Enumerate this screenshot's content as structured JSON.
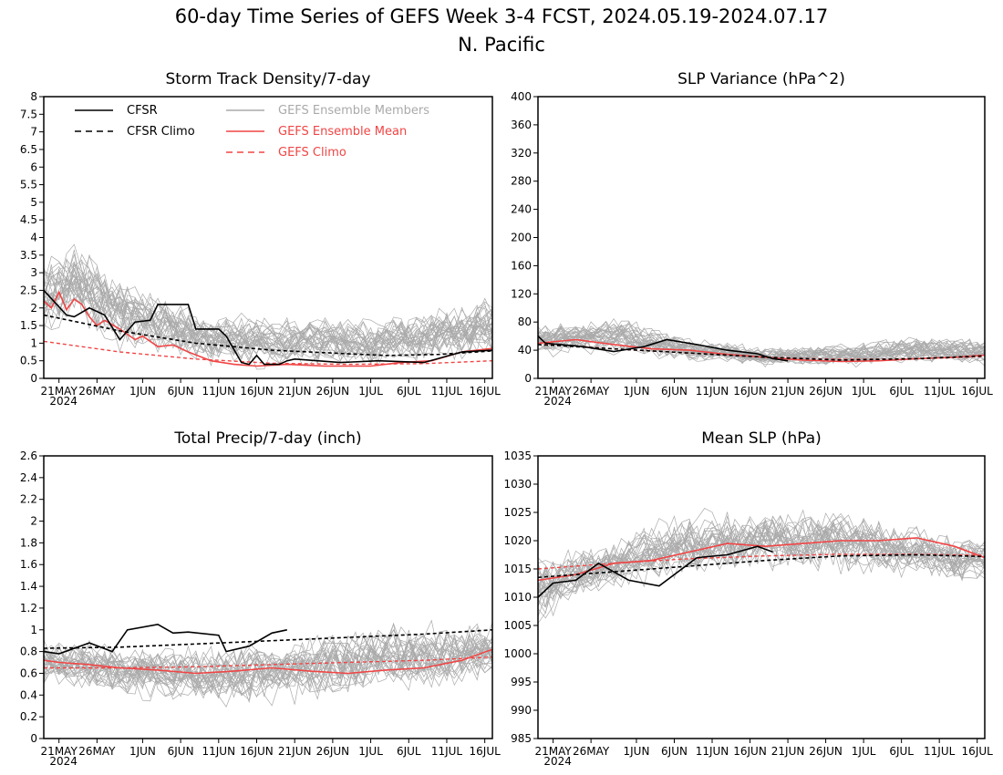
{
  "figure": {
    "title_line1": "60-day Time Series of GEFS Week 3-4 FCST, 2024.05.19-2024.07.17",
    "title_line2": "N. Pacific"
  },
  "colors": {
    "cfsr": "#000000",
    "ensemble_members": "#aaaaaa",
    "ensemble_mean": "#f04545",
    "gefs_climo": "#f04545"
  },
  "legend": [
    {
      "label": "CFSR",
      "style": "solid",
      "color": "#000000"
    },
    {
      "label": "CFSR Climo",
      "style": "dashed",
      "color": "#000000"
    },
    {
      "label": "GEFS Ensemble Members",
      "style": "solid",
      "color": "#aaaaaa"
    },
    {
      "label": "GEFS Ensemble Mean",
      "style": "solid",
      "color": "#f04545"
    },
    {
      "label": "GEFS Climo",
      "style": "dashed",
      "color": "#f04545"
    }
  ],
  "chart_data": [
    {
      "type": "line",
      "title": "Storm Track Density/7-day",
      "x_tick_labels": [
        "21MAY",
        "26MAY",
        "1JUN",
        "6JUN",
        "11JUN",
        "16JUN",
        "21JUN",
        "26JUN",
        "1JUL",
        "6JUL",
        "11JUL",
        "16JUL"
      ],
      "x_year_label": "2024",
      "x_range": [
        "2024-05-19",
        "2024-07-17"
      ],
      "yticks": [
        0,
        0.5,
        1,
        1.5,
        2,
        2.5,
        3,
        3.5,
        4,
        4.5,
        5,
        5.5,
        6,
        6.5,
        7,
        7.5,
        8
      ],
      "ylim": [
        0,
        8
      ],
      "legend_position": "top-left",
      "members_envelope": {
        "low": [
          [
            0,
            1.0
          ],
          [
            8,
            0.6
          ],
          [
            20,
            0.2
          ],
          [
            30,
            0.1
          ],
          [
            40,
            0.1
          ],
          [
            59,
            0.1
          ]
        ],
        "high": [
          [
            0,
            3.6
          ],
          [
            4,
            4.6
          ],
          [
            10,
            3.4
          ],
          [
            20,
            2.2
          ],
          [
            30,
            2.0
          ],
          [
            45,
            2.0
          ],
          [
            59,
            2.6
          ]
        ]
      },
      "series": [
        {
          "name": "CFSR",
          "dates": [
            "2024-05-19",
            "2024-05-22",
            "2024-05-23",
            "2024-05-25",
            "2024-05-27",
            "2024-05-29",
            "2024-05-31",
            "2024-06-02",
            "2024-06-03",
            "2024-06-07",
            "2024-06-08",
            "2024-06-11",
            "2024-06-12",
            "2024-06-14",
            "2024-06-15",
            "2024-06-16",
            "2024-06-17",
            "2024-06-19",
            "2024-06-20",
            "2024-06-21",
            "2024-06-27",
            "2024-07-02",
            "2024-07-08",
            "2024-07-13",
            "2024-07-17"
          ],
          "values": [
            2.5,
            1.8,
            1.75,
            2.0,
            1.8,
            1.1,
            1.6,
            1.65,
            2.1,
            2.1,
            1.4,
            1.4,
            1.2,
            0.45,
            0.4,
            0.65,
            0.4,
            0.4,
            0.5,
            0.55,
            0.45,
            0.5,
            0.45,
            0.75,
            0.8
          ]
        },
        {
          "name": "CFSR Climo",
          "dates": [
            "2024-05-19",
            "2024-05-29",
            "2024-06-08",
            "2024-06-18",
            "2024-06-28",
            "2024-07-03",
            "2024-07-10",
            "2024-07-17"
          ],
          "values": [
            1.8,
            1.35,
            1.0,
            0.8,
            0.7,
            0.65,
            0.68,
            0.78
          ]
        },
        {
          "name": "GEFS Ensemble Mean",
          "dates": [
            "2024-05-19",
            "2024-05-20",
            "2024-05-21",
            "2024-05-22",
            "2024-05-23",
            "2024-05-24",
            "2024-05-25",
            "2024-05-26",
            "2024-05-27",
            "2024-05-29",
            "2024-05-31",
            "2024-06-01",
            "2024-06-03",
            "2024-06-05",
            "2024-06-07",
            "2024-06-10",
            "2024-06-13",
            "2024-06-16",
            "2024-06-20",
            "2024-06-25",
            "2024-07-01",
            "2024-07-05",
            "2024-07-09",
            "2024-07-13",
            "2024-07-17"
          ],
          "values": [
            2.2,
            2.0,
            2.45,
            1.95,
            2.25,
            2.1,
            1.75,
            1.5,
            1.65,
            1.4,
            1.1,
            1.2,
            0.9,
            0.95,
            0.75,
            0.5,
            0.4,
            0.35,
            0.4,
            0.35,
            0.35,
            0.45,
            0.5,
            0.75,
            0.85
          ]
        },
        {
          "name": "GEFS Climo",
          "dates": [
            "2024-05-19",
            "2024-05-29",
            "2024-06-08",
            "2024-06-18",
            "2024-06-28",
            "2024-07-08",
            "2024-07-17"
          ],
          "values": [
            1.05,
            0.75,
            0.55,
            0.43,
            0.4,
            0.42,
            0.5
          ]
        }
      ]
    },
    {
      "type": "line",
      "title": "SLP Variance (hPa^2)",
      "x_tick_labels": [
        "21MAY",
        "26MAY",
        "1JUN",
        "6JUN",
        "11JUN",
        "16JUN",
        "21JUN",
        "26JUN",
        "1JUL",
        "6JUL",
        "11JUL",
        "16JUL"
      ],
      "x_year_label": "2024",
      "x_range": [
        "2024-05-19",
        "2024-07-17"
      ],
      "yticks": [
        0,
        40,
        80,
        120,
        160,
        200,
        240,
        280,
        320,
        360,
        400
      ],
      "ylim": [
        0,
        400
      ],
      "members_envelope": {
        "low": [
          [
            0,
            28
          ],
          [
            15,
            20
          ],
          [
            30,
            12
          ],
          [
            45,
            12
          ],
          [
            59,
            14
          ]
        ],
        "high": [
          [
            0,
            88
          ],
          [
            10,
            100
          ],
          [
            20,
            65
          ],
          [
            30,
            50
          ],
          [
            40,
            55
          ],
          [
            50,
            70
          ],
          [
            59,
            65
          ]
        ]
      },
      "series": [
        {
          "name": "CFSR",
          "dates": [
            "2024-05-19",
            "2024-05-20",
            "2024-05-25",
            "2024-05-29",
            "2024-06-02",
            "2024-06-05",
            "2024-06-09",
            "2024-06-13",
            "2024-06-17",
            "2024-06-19",
            "2024-06-21"
          ],
          "values": [
            60,
            50,
            45,
            38,
            45,
            55,
            48,
            40,
            35,
            28,
            25
          ]
        },
        {
          "name": "CFSR Climo",
          "dates": [
            "2024-05-19",
            "2024-05-29",
            "2024-06-08",
            "2024-06-18",
            "2024-06-28",
            "2024-07-08",
            "2024-07-17"
          ],
          "values": [
            48,
            42,
            36,
            30,
            26,
            28,
            32
          ]
        },
        {
          "name": "GEFS Ensemble Mean",
          "dates": [
            "2024-05-19",
            "2024-05-24",
            "2024-05-29",
            "2024-06-03",
            "2024-06-08",
            "2024-06-13",
            "2024-06-18",
            "2024-06-23",
            "2024-06-28",
            "2024-07-03",
            "2024-07-08",
            "2024-07-13",
            "2024-07-17"
          ],
          "values": [
            50,
            55,
            48,
            42,
            40,
            34,
            30,
            26,
            24,
            25,
            28,
            30,
            33
          ]
        },
        {
          "name": "GEFS Climo",
          "dates": [
            "2024-05-19",
            "2024-05-29",
            "2024-06-08",
            "2024-06-18",
            "2024-06-28",
            "2024-07-08",
            "2024-07-17"
          ],
          "values": [
            50,
            42,
            36,
            30,
            27,
            28,
            31
          ]
        }
      ]
    },
    {
      "type": "line",
      "title": "Total Precip/7-day (inch)",
      "x_tick_labels": [
        "21MAY",
        "26MAY",
        "1JUN",
        "6JUN",
        "11JUN",
        "16JUN",
        "21JUN",
        "26JUN",
        "1JUL",
        "6JUL",
        "11JUL",
        "16JUL"
      ],
      "x_year_label": "2024",
      "x_range": [
        "2024-05-19",
        "2024-07-17"
      ],
      "yticks": [
        0,
        0.2,
        0.4,
        0.6,
        0.8,
        1,
        1.2,
        1.4,
        1.6,
        1.8,
        2,
        2.2,
        2.4,
        2.6
      ],
      "ylim": [
        0,
        2.6
      ],
      "members_envelope": {
        "low": [
          [
            0,
            0.4
          ],
          [
            15,
            0.25
          ],
          [
            25,
            0.2
          ],
          [
            40,
            0.25
          ],
          [
            59,
            0.4
          ]
        ],
        "high": [
          [
            0,
            1.0
          ],
          [
            15,
            0.95
          ],
          [
            30,
            1.0
          ],
          [
            45,
            1.2
          ],
          [
            59,
            1.2
          ]
        ]
      },
      "series": [
        {
          "name": "CFSR",
          "dates": [
            "2024-05-19",
            "2024-05-21",
            "2024-05-25",
            "2024-05-28",
            "2024-05-30",
            "2024-06-03",
            "2024-06-05",
            "2024-06-07",
            "2024-06-11",
            "2024-06-12",
            "2024-06-15",
            "2024-06-18",
            "2024-06-20"
          ],
          "values": [
            0.8,
            0.78,
            0.88,
            0.8,
            1.0,
            1.05,
            0.97,
            0.98,
            0.95,
            0.8,
            0.85,
            0.97,
            1.0
          ]
        },
        {
          "name": "CFSR Climo",
          "dates": [
            "2024-05-19",
            "2024-05-29",
            "2024-06-08",
            "2024-06-18",
            "2024-06-28",
            "2024-07-08",
            "2024-07-17"
          ],
          "values": [
            0.83,
            0.84,
            0.87,
            0.9,
            0.93,
            0.96,
            1.0
          ]
        },
        {
          "name": "GEFS Ensemble Mean",
          "dates": [
            "2024-05-19",
            "2024-05-21",
            "2024-05-25",
            "2024-05-29",
            "2024-06-03",
            "2024-06-08",
            "2024-06-13",
            "2024-06-18",
            "2024-06-23",
            "2024-06-28",
            "2024-07-03",
            "2024-07-08",
            "2024-07-13",
            "2024-07-17"
          ],
          "values": [
            0.72,
            0.7,
            0.68,
            0.65,
            0.63,
            0.6,
            0.62,
            0.65,
            0.62,
            0.6,
            0.63,
            0.65,
            0.72,
            0.82
          ]
        },
        {
          "name": "GEFS Climo",
          "dates": [
            "2024-05-19",
            "2024-05-29",
            "2024-06-08",
            "2024-06-18",
            "2024-06-28",
            "2024-07-08",
            "2024-07-17"
          ],
          "values": [
            0.65,
            0.65,
            0.66,
            0.68,
            0.7,
            0.72,
            0.75
          ]
        }
      ]
    },
    {
      "type": "line",
      "title": "Mean SLP (hPa)",
      "x_tick_labels": [
        "21MAY",
        "26MAY",
        "1JUN",
        "6JUN",
        "11JUN",
        "16JUN",
        "21JUN",
        "26JUN",
        "1JUL",
        "6JUL",
        "11JUL",
        "16JUL"
      ],
      "x_year_label": "2024",
      "x_range": [
        "2024-05-19",
        "2024-07-17"
      ],
      "yticks": [
        985,
        990,
        995,
        1000,
        1005,
        1010,
        1015,
        1020,
        1025,
        1030,
        1035
      ],
      "ylim": [
        985,
        1035
      ],
      "members_envelope": {
        "low": [
          [
            0,
            1003
          ],
          [
            5,
            1008
          ],
          [
            15,
            1011
          ],
          [
            30,
            1013
          ],
          [
            45,
            1012
          ],
          [
            59,
            1011
          ]
        ],
        "high": [
          [
            0,
            1019
          ],
          [
            10,
            1022
          ],
          [
            20,
            1027
          ],
          [
            40,
            1028
          ],
          [
            50,
            1024
          ],
          [
            59,
            1022
          ]
        ]
      },
      "series": [
        {
          "name": "CFSR",
          "dates": [
            "2024-05-19",
            "2024-05-21",
            "2024-05-24",
            "2024-05-27",
            "2024-05-31",
            "2024-06-04",
            "2024-06-09",
            "2024-06-13",
            "2024-06-17",
            "2024-06-19"
          ],
          "values": [
            1010,
            1012.5,
            1013,
            1016,
            1013,
            1012,
            1017,
            1017.5,
            1019,
            1018
          ]
        },
        {
          "name": "CFSR Climo",
          "dates": [
            "2024-05-19",
            "2024-05-29",
            "2024-06-08",
            "2024-06-18",
            "2024-06-28",
            "2024-07-08",
            "2024-07-17"
          ],
          "values": [
            1013.5,
            1014.5,
            1015.5,
            1016.5,
            1017.3,
            1017.5,
            1017.2
          ]
        },
        {
          "name": "GEFS Ensemble Mean",
          "dates": [
            "2024-05-19",
            "2024-05-24",
            "2024-05-29",
            "2024-06-03",
            "2024-06-08",
            "2024-06-13",
            "2024-06-18",
            "2024-06-23",
            "2024-06-28",
            "2024-07-03",
            "2024-07-08",
            "2024-07-13",
            "2024-07-17"
          ],
          "values": [
            1013,
            1014,
            1016,
            1016.5,
            1018,
            1019.5,
            1019,
            1019.5,
            1020,
            1020,
            1020.5,
            1019,
            1017
          ]
        },
        {
          "name": "GEFS Climo",
          "dates": [
            "2024-05-19",
            "2024-05-29",
            "2024-06-08",
            "2024-06-18",
            "2024-06-28",
            "2024-07-08",
            "2024-07-17"
          ],
          "values": [
            1015,
            1016,
            1016.8,
            1017.3,
            1017.6,
            1017.6,
            1017.4
          ]
        }
      ]
    }
  ]
}
